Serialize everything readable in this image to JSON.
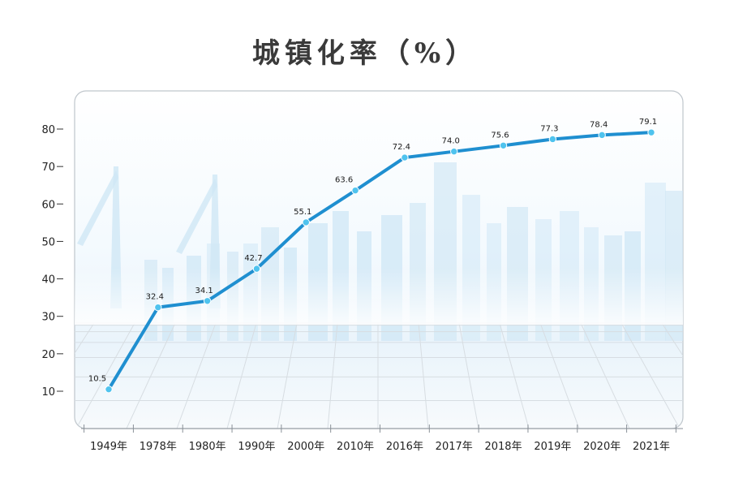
{
  "colors": {
    "line": "#1f8fd0",
    "marker": "#4fc3ee",
    "panel_border": "#bfc6cc",
    "skyline": "#cfe7f5",
    "grid_floor": "#d7dde2"
  },
  "chart_data": {
    "type": "line",
    "title": "城镇化率（%）",
    "xlabel": "",
    "ylabel": "",
    "ylim": [
      0,
      85
    ],
    "yticks": [
      10,
      20,
      30,
      40,
      50,
      60,
      70,
      80
    ],
    "grid": false,
    "categories": [
      "1949年",
      "1978年",
      "1980年",
      "1990年",
      "2000年",
      "2010年",
      "2016年",
      "2017年",
      "2018年",
      "2019年",
      "2020年",
      "2021年"
    ],
    "series": [
      {
        "values": [
          10.5,
          32.4,
          34.1,
          42.7,
          55.1,
          63.6,
          72.4,
          74.0,
          75.6,
          77.3,
          78.4,
          79.1
        ],
        "value_labels": [
          "10.5",
          "32.4",
          "34.1",
          "42.7",
          "55.1",
          "63.6",
          "72.4",
          "74.0",
          "75.6",
          "77.3",
          "78.4",
          "79.1"
        ]
      }
    ]
  }
}
